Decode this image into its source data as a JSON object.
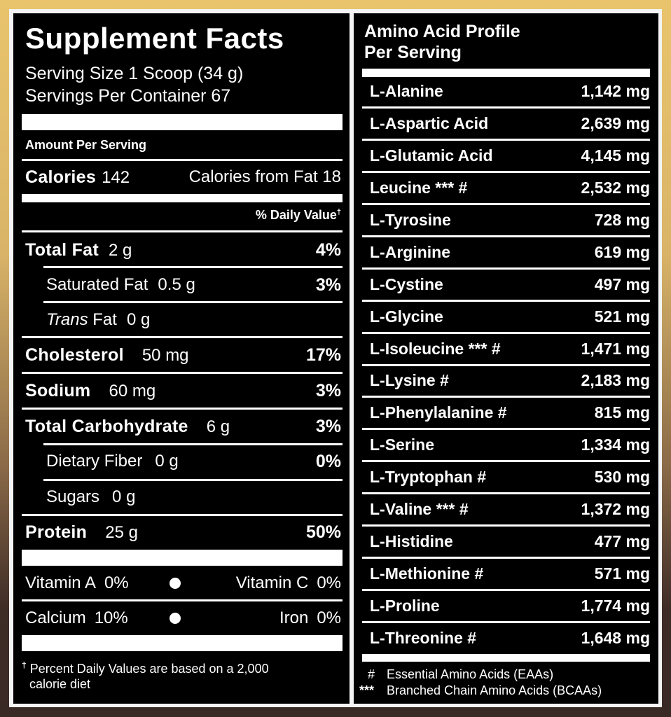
{
  "supplement_facts": {
    "title": "Supplement Facts",
    "serving_size": "Serving Size 1 Scoop (34 g)",
    "servings_per_container": "Servings Per Container 67",
    "amount_per_serving": "Amount Per Serving",
    "calories_label": "Calories",
    "calories_value": "142",
    "calories_from_fat": "Calories from Fat 18",
    "daily_value_header": "% Daily Value",
    "dagger": "†",
    "nutrients": [
      {
        "label": "Total Fat",
        "amount": "2 g",
        "dv": "4%"
      },
      {
        "label": "Saturated Fat",
        "amount": "0.5 g",
        "dv": "3%"
      },
      {
        "label_italic": "Trans",
        "label": "Fat",
        "amount": "0 g",
        "dv": ""
      },
      {
        "label": "Cholesterol",
        "amount": "50 mg",
        "dv": "17%"
      },
      {
        "label": "Sodium",
        "amount": "60 mg",
        "dv": "3%"
      },
      {
        "label": "Total Carbohydrate",
        "amount": "6 g",
        "dv": "3%"
      },
      {
        "label": "Dietary Fiber",
        "amount": "0 g",
        "dv": "0%"
      },
      {
        "label": "Sugars",
        "amount": "0 g",
        "dv": ""
      },
      {
        "label": "Protein",
        "amount": "25 g",
        "dv": "50%"
      }
    ],
    "vitamins": [
      {
        "label": "Vitamin A",
        "value": "0%"
      },
      {
        "label": "Vitamin C",
        "value": "0%"
      },
      {
        "label": "Calcium",
        "value": "10%"
      },
      {
        "label": "Iron",
        "value": "0%"
      }
    ],
    "footnote_line1": "Percent Daily Values are based on a 2,000",
    "footnote_line2": "calorie diet"
  },
  "amino_profile": {
    "title_line1": "Amino Acid Profile",
    "title_line2": "Per Serving",
    "items": [
      {
        "name": "L-Alanine",
        "value": "1,142 mg"
      },
      {
        "name": "L-Aspartic Acid",
        "value": "2,639 mg"
      },
      {
        "name": "L-Glutamic Acid",
        "value": "4,145 mg"
      },
      {
        "name": "Leucine *** #",
        "value": "2,532 mg"
      },
      {
        "name": "L-Tyrosine",
        "value": "728 mg"
      },
      {
        "name": "L-Arginine",
        "value": "619 mg"
      },
      {
        "name": "L-Cystine",
        "value": "497 mg"
      },
      {
        "name": "L-Glycine",
        "value": "521 mg"
      },
      {
        "name": "L-Isoleucine *** #",
        "value": "1,471 mg"
      },
      {
        "name": "L-Lysine #",
        "value": "2,183 mg"
      },
      {
        "name": "L-Phenylalanine #",
        "value": "815 mg"
      },
      {
        "name": "L-Serine",
        "value": "1,334 mg"
      },
      {
        "name": "L-Tryptophan #",
        "value": "530 mg"
      },
      {
        "name": "L-Valine *** #",
        "value": "1,372 mg"
      },
      {
        "name": "L-Histidine",
        "value": "477 mg"
      },
      {
        "name": "L-Methionine #",
        "value": "571 mg"
      },
      {
        "name": "L-Proline",
        "value": "1,774 mg"
      },
      {
        "name": "L-Threonine #",
        "value": "1,648 mg"
      }
    ],
    "legend": [
      {
        "symbol": "#",
        "text": "Essential Amino Acids (EAAs)"
      },
      {
        "symbol": "***",
        "text": "Branched Chain Amino Acids (BCAAs)"
      }
    ]
  },
  "colors": {
    "background_top": "#e9c46c",
    "background_bottom": "#3a2a26",
    "panel": "#000000",
    "text": "#ffffff"
  }
}
